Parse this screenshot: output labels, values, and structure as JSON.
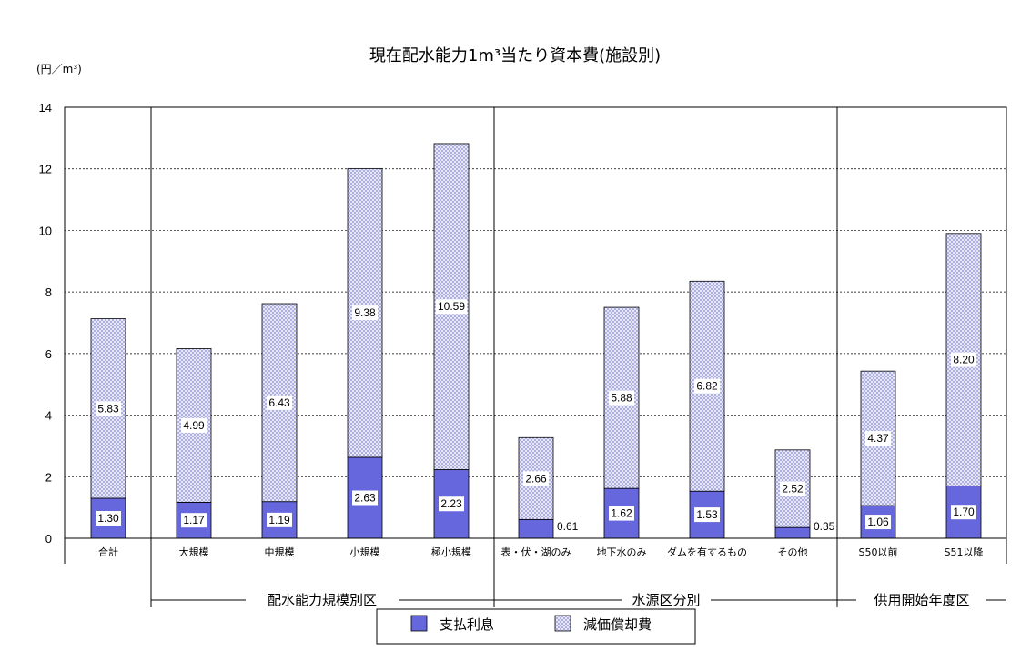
{
  "chart_data": {
    "type": "bar",
    "stacked": true,
    "title": "現在配水能力1m³当たり資本費(施設別)",
    "unit_label": "(円／m³)",
    "ylim": [
      0,
      14
    ],
    "yticks": [
      0,
      2,
      4,
      6,
      8,
      10,
      12,
      14
    ],
    "grid": "horizontal dashed",
    "categories": [
      "合計",
      "大規模",
      "中規模",
      "小規模",
      "極小規模",
      "表・伏・湖のみ",
      "地下水のみ",
      "ダムを有するもの",
      "その他",
      "S50以前",
      "S51以降"
    ],
    "series": [
      {
        "name": "支払利息",
        "values": [
          1.3,
          1.17,
          1.19,
          2.63,
          2.23,
          0.61,
          1.62,
          1.53,
          0.35,
          1.06,
          1.7
        ],
        "color": "#6666dd"
      },
      {
        "name": "減価償却費",
        "values": [
          5.83,
          4.99,
          6.43,
          9.38,
          10.59,
          2.66,
          5.88,
          6.82,
          2.52,
          4.37,
          8.2
        ],
        "color": "#c8c8f0"
      }
    ],
    "data_labels": {
      "interest": [
        "1.30",
        "1.17",
        "1.19",
        "2.63",
        "2.23",
        "0.61",
        "1.62",
        "1.53",
        "0.35",
        "1.06",
        "1.70"
      ],
      "depreciation": [
        "5.83",
        "4.99",
        "6.43",
        "9.38",
        "10.59",
        "2.66",
        "5.88",
        "6.82",
        "2.52",
        "4.37",
        "8.20"
      ]
    },
    "groups": [
      {
        "label": "配水能力規模別区",
        "categories": [
          "大規模",
          "中規模",
          "小規模",
          "極小規模"
        ]
      },
      {
        "label": "水源区分別",
        "categories": [
          "表・伏・湖のみ",
          "地下水のみ",
          "ダムを有するもの",
          "その他"
        ]
      },
      {
        "label": "供用開始年度区",
        "categories": [
          "S50以前",
          "S51以降"
        ]
      }
    ],
    "legend": [
      "支払利息",
      "減価償却費"
    ],
    "legend_placement": "bottom-center"
  }
}
